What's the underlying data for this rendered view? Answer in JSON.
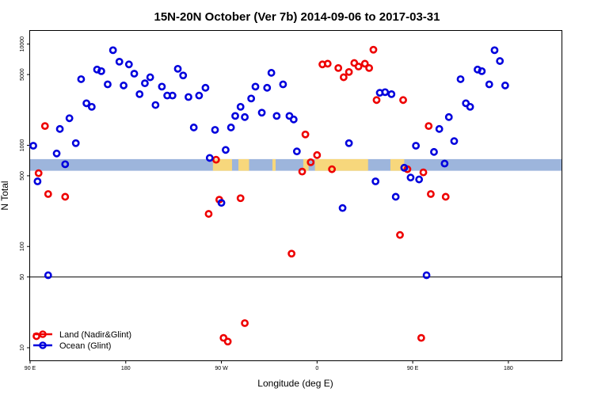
{
  "chart_data": {
    "type": "scatter",
    "title": "15N-20N October (Ver 7b)   2014-09-06 to 2017-03-31",
    "xlabel": "Longitude (deg E)",
    "ylabel": "N Total",
    "xlim": [
      0,
      500
    ],
    "ylim_log": [
      7.5,
      13500
    ],
    "y_scale": "log",
    "x_ticks": [
      {
        "value": 0,
        "label": "90 E"
      },
      {
        "value": 90,
        "label": "180"
      },
      {
        "value": 180,
        "label": "90 W"
      },
      {
        "value": 270,
        "label": "0"
      },
      {
        "value": 360,
        "label": "90 E"
      },
      {
        "value": 450,
        "label": "180"
      }
    ],
    "y_ticks": [
      {
        "value": 10,
        "label": "10"
      },
      {
        "value": 50,
        "label": "50"
      },
      {
        "value": 100,
        "label": "100"
      },
      {
        "value": 500,
        "label": "500"
      },
      {
        "value": 1000,
        "label": "1000"
      },
      {
        "value": 5000,
        "label": "5000"
      },
      {
        "value": 10000,
        "label": "10000"
      }
    ],
    "reference_lines": [
      50
    ],
    "map_strip": {
      "y_range": [
        560,
        730
      ],
      "ocean_color": "#9db5dc",
      "land_color": "#f7d77c"
    },
    "legend": {
      "placement": "bottom-left",
      "entries": [
        {
          "label": "Land (Nadir&Glint)",
          "color": "#ee0000"
        },
        {
          "label": "Ocean (Glint)",
          "color": "#0000dd"
        }
      ]
    },
    "series": [
      {
        "name": "Land (Nadir&Glint)",
        "color": "#ee0000",
        "points": [
          [
            8,
            530
          ],
          [
            6,
            13
          ],
          [
            14,
            1550
          ],
          [
            17,
            330
          ],
          [
            33,
            310
          ],
          [
            168,
            210
          ],
          [
            175,
            720
          ],
          [
            178,
            290
          ],
          [
            182,
            12.5
          ],
          [
            186,
            11.5
          ],
          [
            198,
            300
          ],
          [
            202,
            17.5
          ],
          [
            246,
            85
          ],
          [
            256,
            550
          ],
          [
            259,
            1280
          ],
          [
            264,
            680
          ],
          [
            270,
            800
          ],
          [
            275,
            6300
          ],
          [
            280,
            6400
          ],
          [
            284,
            580
          ],
          [
            290,
            5800
          ],
          [
            295,
            4700
          ],
          [
            300,
            5300
          ],
          [
            305,
            6500
          ],
          [
            309,
            6000
          ],
          [
            315,
            6400
          ],
          [
            319,
            5800
          ],
          [
            323,
            8800
          ],
          [
            326,
            2800
          ],
          [
            348,
            130
          ],
          [
            351,
            2800
          ],
          [
            355,
            580
          ],
          [
            368,
            12.5
          ],
          [
            370,
            540
          ],
          [
            375,
            1550
          ],
          [
            377,
            330
          ],
          [
            391,
            310
          ]
        ]
      },
      {
        "name": "Ocean (Glint)",
        "color": "#0000dd",
        "points": [
          [
            3,
            990
          ],
          [
            7,
            440
          ],
          [
            17,
            52
          ],
          [
            25,
            830
          ],
          [
            28,
            1450
          ],
          [
            33,
            650
          ],
          [
            37,
            1850
          ],
          [
            43,
            1050
          ],
          [
            48,
            4500
          ],
          [
            53,
            2600
          ],
          [
            58,
            2400
          ],
          [
            63,
            5600
          ],
          [
            67,
            5400
          ],
          [
            73,
            4000
          ],
          [
            78,
            8700
          ],
          [
            84,
            6700
          ],
          [
            88,
            3900
          ],
          [
            93,
            6300
          ],
          [
            98,
            5100
          ],
          [
            103,
            3200
          ],
          [
            108,
            4100
          ],
          [
            113,
            4700
          ],
          [
            118,
            2500
          ],
          [
            124,
            3800
          ],
          [
            129,
            3100
          ],
          [
            134,
            3100
          ],
          [
            139,
            5700
          ],
          [
            144,
            4900
          ],
          [
            149,
            3000
          ],
          [
            154,
            1500
          ],
          [
            159,
            3100
          ],
          [
            165,
            3700
          ],
          [
            169,
            750
          ],
          [
            174,
            1420
          ],
          [
            180,
            270
          ],
          [
            184,
            900
          ],
          [
            189,
            1500
          ],
          [
            193,
            1950
          ],
          [
            198,
            2400
          ],
          [
            202,
            1900
          ],
          [
            208,
            2900
          ],
          [
            212,
            3800
          ],
          [
            218,
            2100
          ],
          [
            223,
            3700
          ],
          [
            227,
            5200
          ],
          [
            232,
            1950
          ],
          [
            238,
            4000
          ],
          [
            244,
            1950
          ],
          [
            248,
            1800
          ],
          [
            251,
            870
          ],
          [
            294,
            240
          ],
          [
            300,
            1050
          ],
          [
            325,
            440
          ],
          [
            329,
            3300
          ],
          [
            334,
            3350
          ],
          [
            340,
            3200
          ],
          [
            344,
            310
          ],
          [
            352,
            600
          ],
          [
            358,
            480
          ],
          [
            363,
            990
          ],
          [
            366,
            460
          ],
          [
            373,
            52
          ],
          [
            380,
            860
          ],
          [
            385,
            1450
          ],
          [
            390,
            660
          ],
          [
            394,
            1900
          ],
          [
            399,
            1100
          ],
          [
            405,
            4500
          ],
          [
            410,
            2600
          ],
          [
            414,
            2400
          ],
          [
            421,
            5600
          ],
          [
            425,
            5400
          ],
          [
            432,
            4000
          ],
          [
            437,
            8700
          ],
          [
            442,
            6800
          ],
          [
            447,
            3900
          ]
        ]
      }
    ]
  }
}
